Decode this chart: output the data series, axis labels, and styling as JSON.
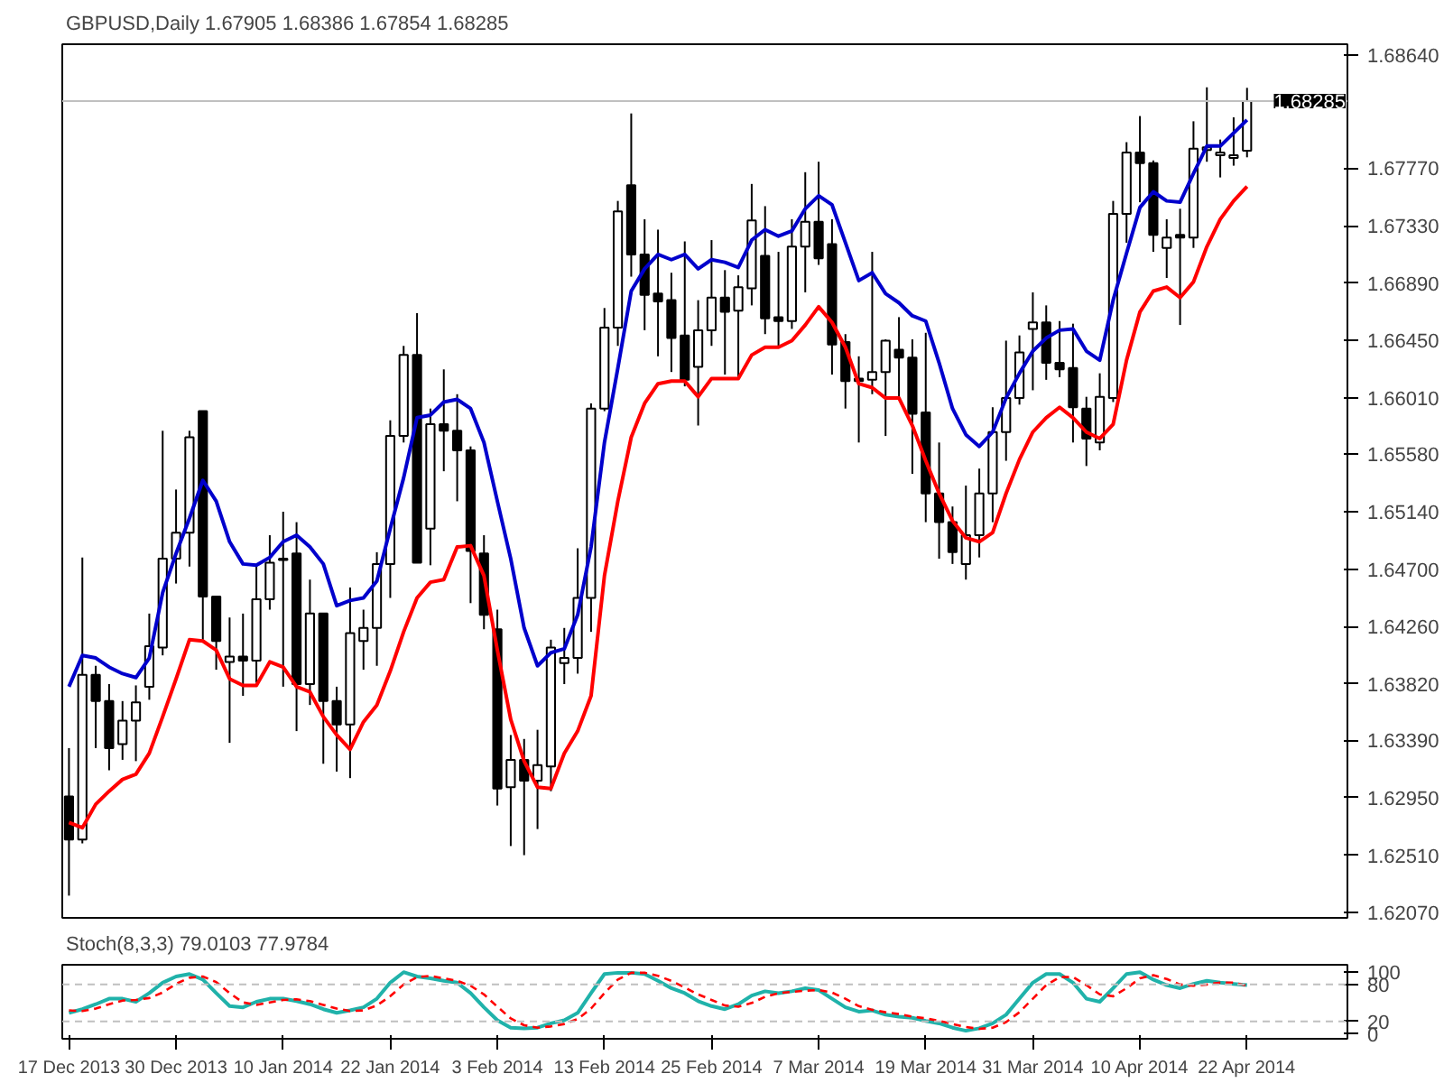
{
  "chart_data": [
    {
      "type": "candlestick",
      "title": "GBPUSD,Daily 1.67905 1.68386 1.67854 1.68285",
      "categories": [
        null,
        null,
        null,
        null,
        null,
        null,
        null,
        null,
        null,
        null,
        null,
        null,
        null,
        null,
        null,
        null,
        null,
        null,
        null,
        null,
        null,
        null,
        null,
        null,
        null,
        null,
        null,
        null,
        null,
        null,
        null,
        null,
        null,
        null,
        null,
        null,
        null,
        null,
        null,
        null,
        null,
        null,
        null,
        null,
        null,
        null,
        null,
        null,
        null,
        null,
        null,
        null,
        null,
        null,
        null,
        null,
        null,
        null,
        null,
        null,
        null,
        null,
        null,
        null,
        null,
        null,
        null,
        null,
        null,
        null,
        null,
        null,
        null,
        null,
        null,
        null,
        null,
        null,
        null,
        null,
        null,
        null,
        null,
        null,
        null,
        null,
        null,
        null,
        null
      ],
      "ohlc": [
        [
          1.6296,
          1.6333,
          1.622,
          1.6263
        ],
        [
          1.6263,
          1.6479,
          1.626,
          1.6389
        ],
        [
          1.6389,
          1.6396,
          1.6333,
          1.6369
        ],
        [
          1.6369,
          1.6382,
          1.6316,
          1.6333
        ],
        [
          1.6336,
          1.6369,
          1.6324,
          1.6354
        ],
        [
          1.6354,
          1.6381,
          1.6323,
          1.6368
        ],
        [
          1.638,
          1.6436,
          1.637,
          1.6411
        ],
        [
          1.641,
          1.6576,
          1.6404,
          1.6478
        ],
        [
          1.6478,
          1.6531,
          1.6459,
          1.6498
        ],
        [
          1.6498,
          1.6576,
          1.6472,
          1.6571
        ],
        [
          1.6591,
          1.6591,
          1.6416,
          1.6449
        ],
        [
          1.6449,
          1.6449,
          1.6393,
          1.6415
        ],
        [
          1.6399,
          1.6433,
          1.6337,
          1.6403
        ],
        [
          1.6403,
          1.6436,
          1.6373,
          1.64
        ],
        [
          1.64,
          1.6472,
          1.6383,
          1.6447
        ],
        [
          1.6447,
          1.6496,
          1.6439,
          1.6475
        ],
        [
          1.6478,
          1.6514,
          1.638,
          1.6477
        ],
        [
          1.6482,
          1.6506,
          1.6346,
          1.6382
        ],
        [
          1.6382,
          1.6462,
          1.6366,
          1.6436
        ],
        [
          1.6436,
          1.6436,
          1.6321,
          1.6369
        ],
        [
          1.6369,
          1.638,
          1.6315,
          1.6351
        ],
        [
          1.6351,
          1.6456,
          1.631,
          1.6421
        ],
        [
          1.6415,
          1.6439,
          1.6393,
          1.6425
        ],
        [
          1.6425,
          1.6483,
          1.6396,
          1.6474
        ],
        [
          1.6474,
          1.6584,
          1.6448,
          1.6572
        ],
        [
          1.6572,
          1.6641,
          1.6567,
          1.6634
        ],
        [
          1.6634,
          1.6666,
          1.6475,
          1.6475
        ],
        [
          1.6501,
          1.6593,
          1.6473,
          1.6581
        ],
        [
          1.6581,
          1.6623,
          1.6545,
          1.6576
        ],
        [
          1.6576,
          1.6604,
          1.6522,
          1.6561
        ],
        [
          1.6561,
          1.6564,
          1.6444,
          1.6484
        ],
        [
          1.6482,
          1.6496,
          1.6424,
          1.6435
        ],
        [
          1.6424,
          1.6439,
          1.6289,
          1.6302
        ],
        [
          1.6303,
          1.6343,
          1.6258,
          1.6324
        ],
        [
          1.6324,
          1.634,
          1.6251,
          1.6308
        ],
        [
          1.6308,
          1.6347,
          1.6271,
          1.632
        ],
        [
          1.6319,
          1.6416,
          1.63,
          1.641
        ],
        [
          1.6398,
          1.6425,
          1.6382,
          1.6402
        ],
        [
          1.6402,
          1.6486,
          1.639,
          1.6448
        ],
        [
          1.6448,
          1.6597,
          1.6422,
          1.6593
        ],
        [
          1.6593,
          1.667,
          1.6591,
          1.6655
        ],
        [
          1.6655,
          1.6752,
          1.6641,
          1.6744
        ],
        [
          1.6764,
          1.6819,
          1.6694,
          1.6711
        ],
        [
          1.6711,
          1.6738,
          1.6653,
          1.668
        ],
        [
          1.6681,
          1.673,
          1.6633,
          1.6675
        ],
        [
          1.6676,
          1.6697,
          1.6621,
          1.6647
        ],
        [
          1.6649,
          1.6721,
          1.661,
          1.6615
        ],
        [
          1.6625,
          1.6676,
          1.658,
          1.6653
        ],
        [
          1.6653,
          1.6722,
          1.6641,
          1.6678
        ],
        [
          1.6678,
          1.6699,
          1.6619,
          1.6667
        ],
        [
          1.6668,
          1.6695,
          1.6616,
          1.6686
        ],
        [
          1.6685,
          1.6765,
          1.6672,
          1.6737
        ],
        [
          1.671,
          1.6748,
          1.665,
          1.6662
        ],
        [
          1.6663,
          1.6713,
          1.6641,
          1.666
        ],
        [
          1.666,
          1.6738,
          1.6654,
          1.6717
        ],
        [
          1.6717,
          1.6774,
          1.6682,
          1.6736
        ],
        [
          1.6736,
          1.6782,
          1.6703,
          1.6708
        ],
        [
          1.6719,
          1.6738,
          1.6619,
          1.6642
        ],
        [
          1.6644,
          1.665,
          1.6593,
          1.6614
        ],
        [
          1.6616,
          1.6633,
          1.6567,
          1.6614
        ],
        [
          1.6615,
          1.6713,
          1.6604,
          1.6621
        ],
        [
          1.6621,
          1.6646,
          1.6572,
          1.6645
        ],
        [
          1.6638,
          1.6663,
          1.6601,
          1.6632
        ],
        [
          1.6632,
          1.6646,
          1.6543,
          1.6589
        ],
        [
          1.659,
          1.6651,
          1.6506,
          1.6528
        ],
        [
          1.6528,
          1.6567,
          1.6478,
          1.6506
        ],
        [
          1.6506,
          1.6518,
          1.6474,
          1.6483
        ],
        [
          1.6474,
          1.6534,
          1.6462,
          1.6496
        ],
        [
          1.6496,
          1.6547,
          1.6479,
          1.6528
        ],
        [
          1.6528,
          1.6594,
          1.6506,
          1.6575
        ],
        [
          1.6575,
          1.6645,
          1.6553,
          1.6601
        ],
        [
          1.6601,
          1.6649,
          1.6596,
          1.6636
        ],
        [
          1.6654,
          1.6682,
          1.6607,
          1.6659
        ],
        [
          1.6659,
          1.6672,
          1.6615,
          1.6628
        ],
        [
          1.6628,
          1.666,
          1.6617,
          1.6623
        ],
        [
          1.6624,
          1.6658,
          1.6567,
          1.6594
        ],
        [
          1.6593,
          1.6602,
          1.6549,
          1.657
        ],
        [
          1.6567,
          1.662,
          1.6561,
          1.6602
        ],
        [
          1.6601,
          1.6752,
          1.6598,
          1.6742
        ],
        [
          1.6742,
          1.6797,
          1.672,
          1.6789
        ],
        [
          1.6789,
          1.6817,
          1.6751,
          1.6781
        ],
        [
          1.6781,
          1.6783,
          1.6713,
          1.6726
        ],
        [
          1.6716,
          1.6738,
          1.6693,
          1.6724
        ],
        [
          1.6726,
          1.6746,
          1.6657,
          1.6724
        ],
        [
          1.6724,
          1.6813,
          1.6716,
          1.6792
        ],
        [
          1.6791,
          1.6839,
          1.6782,
          1.6793
        ],
        [
          1.6787,
          1.6799,
          1.677,
          1.6789
        ],
        [
          1.6785,
          1.6816,
          1.6779,
          1.6787
        ],
        [
          1.67905,
          1.68386,
          1.67854,
          1.68285
        ]
      ],
      "series": [
        {
          "type": "line",
          "color": "#0000cc",
          "values": [
            1.638,
            1.6404,
            1.6402,
            1.6395,
            1.639,
            1.6387,
            1.6402,
            1.6452,
            1.6482,
            1.6509,
            1.6538,
            1.6522,
            1.6491,
            1.6474,
            1.6473,
            1.6479,
            1.6491,
            1.6496,
            1.6487,
            1.6474,
            1.6442,
            1.6446,
            1.6448,
            1.6461,
            1.6501,
            1.654,
            1.6586,
            1.6588,
            1.6598,
            1.66,
            1.6593,
            1.6567,
            1.6522,
            1.6478,
            1.6425,
            1.6396,
            1.6406,
            1.6409,
            1.6435,
            1.6487,
            1.6567,
            1.6624,
            1.6683,
            1.67,
            1.6711,
            1.6707,
            1.6711,
            1.67,
            1.6707,
            1.6705,
            1.6701,
            1.6722,
            1.673,
            1.6725,
            1.6729,
            1.6746,
            1.6756,
            1.6749,
            1.672,
            1.6691,
            1.6697,
            1.6681,
            1.6674,
            1.6664,
            1.666,
            1.6628,
            1.6593,
            1.6573,
            1.6564,
            1.6575,
            1.6601,
            1.662,
            1.6637,
            1.6647,
            1.6653,
            1.6654,
            1.6637,
            1.663,
            1.6676,
            1.6712,
            1.6747,
            1.6759,
            1.6752,
            1.6751,
            1.6773,
            1.6794,
            1.6794,
            1.6804,
            1.6814
          ]
        },
        {
          "type": "line",
          "color": "#ff0000",
          "values": [
            1.6276,
            1.6272,
            1.629,
            1.63,
            1.6309,
            1.6313,
            1.6329,
            1.6357,
            1.6386,
            1.6416,
            1.6415,
            1.6408,
            1.6386,
            1.6381,
            1.6381,
            1.6399,
            1.6395,
            1.638,
            1.6376,
            1.6357,
            1.6343,
            1.6332,
            1.6353,
            1.6366,
            1.6392,
            1.6422,
            1.6448,
            1.646,
            1.6462,
            1.6487,
            1.6488,
            1.6465,
            1.6408,
            1.6355,
            1.6323,
            1.6303,
            1.6302,
            1.6329,
            1.6346,
            1.6373,
            1.6465,
            1.6522,
            1.6571,
            1.6597,
            1.6612,
            1.6614,
            1.6614,
            1.6602,
            1.6616,
            1.6616,
            1.6616,
            1.6634,
            1.664,
            1.664,
            1.6645,
            1.6657,
            1.6671,
            1.6659,
            1.664,
            1.6612,
            1.6609,
            1.6601,
            1.6601,
            1.658,
            1.6553,
            1.6528,
            1.6507,
            1.6494,
            1.6491,
            1.6498,
            1.6528,
            1.6554,
            1.6575,
            1.6586,
            1.6594,
            1.6586,
            1.6575,
            1.657,
            1.6581,
            1.663,
            1.6667,
            1.6683,
            1.6686,
            1.6678,
            1.669,
            1.6717,
            1.6738,
            1.6752,
            1.6763
          ]
        }
      ],
      "ylim": [
        1.6203,
        1.6872
      ],
      "yticks": [
        {
          "value": 1.6864,
          "label": "1.68640"
        },
        {
          "value": 1.6777,
          "label": "1.67770"
        },
        {
          "value": 1.6733,
          "label": "1.67330"
        },
        {
          "value": 1.6689,
          "label": "1.66890"
        },
        {
          "value": 1.6645,
          "label": "1.66450"
        },
        {
          "value": 1.6601,
          "label": "1.66010"
        },
        {
          "value": 1.6558,
          "label": "1.65580"
        },
        {
          "value": 1.6514,
          "label": "1.65140"
        },
        {
          "value": 1.647,
          "label": "1.64700"
        },
        {
          "value": 1.6426,
          "label": "1.64260"
        },
        {
          "value": 1.6382,
          "label": "1.63820"
        },
        {
          "value": 1.6339,
          "label": "1.63390"
        },
        {
          "value": 1.6295,
          "label": "1.62950"
        },
        {
          "value": 1.6251,
          "label": "1.62510"
        },
        {
          "value": 1.6207,
          "label": "1.62070"
        }
      ],
      "ref_lines": [
        {
          "axis": "y",
          "value": 1.68285,
          "label": "1.68285",
          "color": "#c0c0c0"
        }
      ],
      "tick_labels": "y"
    },
    {
      "type": "line",
      "title": "Stoch(8,3,3) 79.0103 77.9784",
      "categories": [
        "17 Dec 2013",
        null,
        null,
        null,
        null,
        null,
        null,
        null,
        "30 Dec 2013",
        null,
        null,
        null,
        null,
        null,
        null,
        null,
        "10 Jan 2014",
        null,
        null,
        null,
        null,
        null,
        null,
        null,
        "22 Jan 2014",
        null,
        null,
        null,
        null,
        null,
        null,
        null,
        "3 Feb 2014",
        null,
        null,
        null,
        null,
        null,
        null,
        null,
        "13 Feb 2014",
        null,
        null,
        null,
        null,
        null,
        null,
        null,
        "25 Feb 2014",
        null,
        null,
        null,
        null,
        null,
        null,
        null,
        "7 Mar 2014",
        null,
        null,
        null,
        null,
        null,
        null,
        null,
        "19 Mar 2014",
        null,
        null,
        null,
        null,
        null,
        null,
        null,
        "31 Mar 2014",
        null,
        null,
        null,
        null,
        null,
        null,
        null,
        "10 Apr 2014",
        null,
        null,
        null,
        null,
        null,
        null,
        null,
        "22 Apr 2014"
      ],
      "series": [
        {
          "color": "#20b2aa",
          "values": [
            34,
            40,
            48,
            57,
            57,
            52,
            66,
            83,
            93,
            97,
            88,
            66,
            45,
            43,
            52,
            57,
            57,
            53,
            48,
            40,
            34,
            38,
            43,
            57,
            83,
            100,
            93,
            90,
            86,
            83,
            66,
            43,
            22,
            10,
            9,
            10,
            17,
            22,
            34,
            66,
            97,
            99,
            99,
            97,
            86,
            74,
            66,
            53,
            45,
            40,
            48,
            62,
            69,
            66,
            69,
            74,
            71,
            57,
            43,
            36,
            38,
            31,
            28,
            26,
            21,
            17,
            10,
            5,
            9,
            17,
            31,
            57,
            83,
            97,
            97,
            83,
            57,
            52,
            74,
            97,
            100,
            88,
            79,
            74,
            81,
            86,
            83,
            81,
            79
          ]
        },
        {
          "color": "#ff0000",
          "line_style": "dashed",
          "values": [
            38,
            37,
            41,
            48,
            54,
            55,
            58,
            67,
            81,
            91,
            93,
            84,
            66,
            51,
            47,
            51,
            55,
            56,
            53,
            47,
            41,
            37,
            38,
            46,
            61,
            80,
            92,
            94,
            90,
            86,
            78,
            64,
            44,
            25,
            14,
            10,
            12,
            16,
            24,
            41,
            66,
            88,
            99,
            99,
            94,
            86,
            75,
            64,
            55,
            46,
            44,
            50,
            60,
            66,
            68,
            70,
            71,
            67,
            57,
            45,
            39,
            35,
            32,
            28,
            25,
            21,
            16,
            11,
            8,
            10,
            19,
            35,
            57,
            79,
            92,
            92,
            79,
            64,
            61,
            74,
            90,
            95,
            89,
            80,
            78,
            80,
            83,
            83,
            78
          ]
        }
      ],
      "ylim": [
        -8,
        112
      ],
      "yticks": [
        0,
        20,
        80,
        100
      ],
      "ref_lines": [
        {
          "axis": "y",
          "value": 80,
          "color": "#c0c0c0",
          "line_style": "dashed"
        },
        {
          "axis": "y",
          "value": 20,
          "color": "#c0c0c0",
          "line_style": "dashed"
        }
      ]
    }
  ]
}
